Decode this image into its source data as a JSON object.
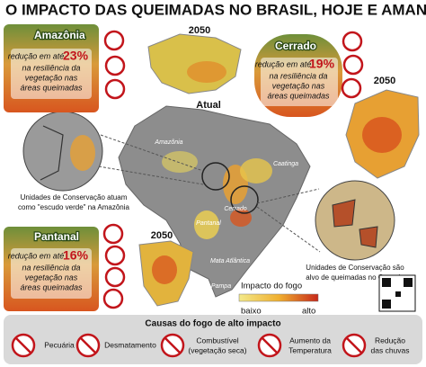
{
  "title": "O IMPACTO DAS QUEIMADAS NO BRASIL, HOJE E AMANHÃ",
  "biomes": [
    {
      "name": "Amazônia",
      "lead": "redução em até",
      "percent": "23%",
      "lines": [
        "na resiliência da",
        "vegetação nas",
        "áreas queimadas"
      ]
    },
    {
      "name": "Cerrado",
      "lead": "redução em até",
      "percent": "19%",
      "lines": [
        "na resiliência da",
        "vegetação nas",
        "áreas queimadas"
      ]
    },
    {
      "name": "Pantanal",
      "lead": "redução em até",
      "percent": "16%",
      "lines": [
        "na resiliência da",
        "vegetação nas",
        "áreas queimadas"
      ]
    }
  ],
  "years": [
    "2050",
    "2050",
    "2050"
  ],
  "current": "Atual",
  "map_labels": [
    "Amazônia",
    "Caatinga",
    "Cerrado",
    "Pantanal",
    "Mata Atlântica",
    "Pampa"
  ],
  "callouts": [
    {
      "lines": [
        "Unidades de Conservação atuam",
        "como \"escudo verde\" na Amazônia"
      ]
    },
    {
      "lines": [
        "Unidades de Conservação são",
        "alvo de queimadas no Cerrado"
      ]
    }
  ],
  "legend": {
    "title": "Impacto do fogo",
    "low": "baixo",
    "high": "alto"
  },
  "causes": {
    "title": "Causas do fogo de alto impacto",
    "items": [
      {
        "lines": [
          "Pecuária"
        ]
      },
      {
        "lines": [
          "Desmatamento"
        ]
      },
      {
        "lines": [
          "Combustível",
          "(vegetação seca)"
        ]
      },
      {
        "lines": [
          "Aumento da",
          "Temperatura"
        ]
      },
      {
        "lines": [
          "Redução",
          "das chuvas"
        ]
      }
    ]
  }
}
